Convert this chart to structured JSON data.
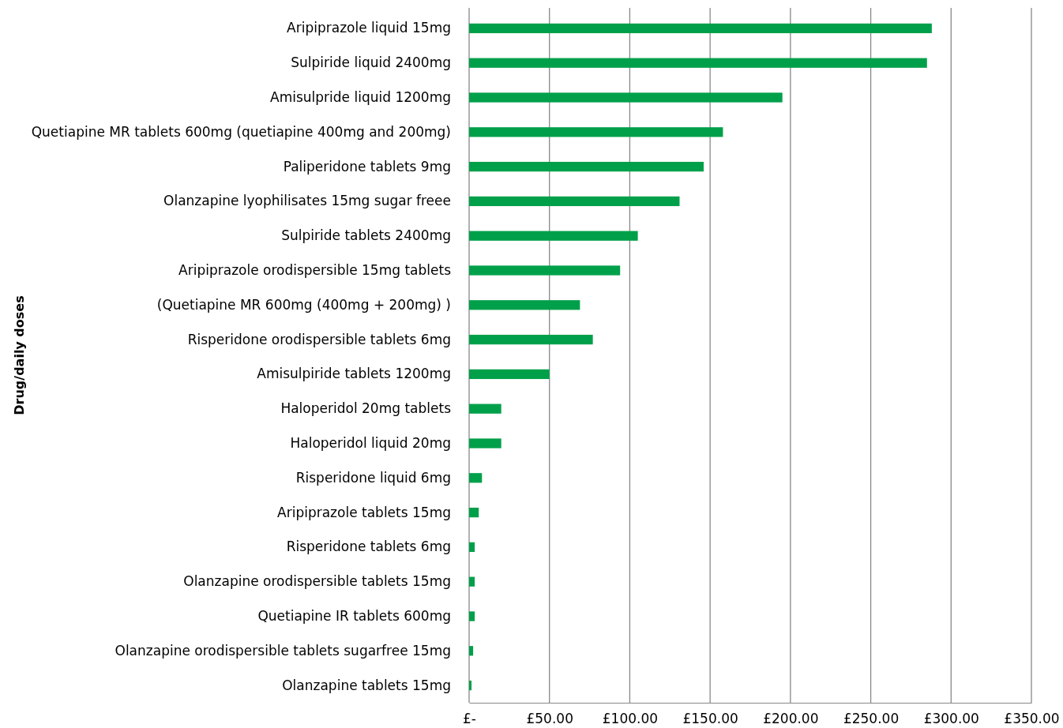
{
  "chart_data": {
    "type": "bar",
    "orientation": "horizontal",
    "ylabel": "Drug/daily doses",
    "categories": [
      "Aripiprazole liquid 15mg",
      "Sulpiride liquid 2400mg",
      "Amisulpride liquid 1200mg",
      "Quetiapine MR tablets 600mg (quetiapine 400mg and 200mg)",
      "Paliperidone tablets 9mg",
      "Olanzapine lyophilisates 15mg sugar freee",
      "Sulpiride tablets 2400mg",
      "Aripiprazole orodispersible 15mg tablets",
      "(Quetiapine MR 600mg (400mg + 200mg) )",
      "Risperidone orodispersible tablets 6mg",
      "Amisulpiride tablets 1200mg",
      "Haloperidol 20mg tablets",
      "Haloperidol liquid 20mg",
      "Risperidone liquid 6mg",
      "Aripiprazole tablets 15mg",
      "Risperidone tablets 6mg",
      "Olanzapine orodispersible tablets 15mg",
      "Quetiapine IR tablets 600mg",
      "Olanzapine orodispersible tablets sugarfree 15mg",
      "Olanzapine tablets 15mg"
    ],
    "values": [
      288,
      285,
      195,
      158,
      146,
      131,
      105,
      94,
      69,
      77,
      50,
      20,
      20,
      8,
      6,
      3.5,
      3.5,
      3.5,
      2.5,
      1.5
    ],
    "color": "#00a04a",
    "xlim": [
      0,
      350
    ],
    "xticks": [
      {
        "value": 0,
        "label": "£-"
      },
      {
        "value": 50,
        "label": "£50.00"
      },
      {
        "value": 100,
        "label": "£100.00"
      },
      {
        "value": 150,
        "label": "£150.00"
      },
      {
        "value": 200,
        "label": "£200.00"
      },
      {
        "value": 250,
        "label": "£250.00"
      },
      {
        "value": 300,
        "label": "£300.00"
      },
      {
        "value": 350,
        "label": "£350.00"
      }
    ],
    "grid": "x"
  }
}
